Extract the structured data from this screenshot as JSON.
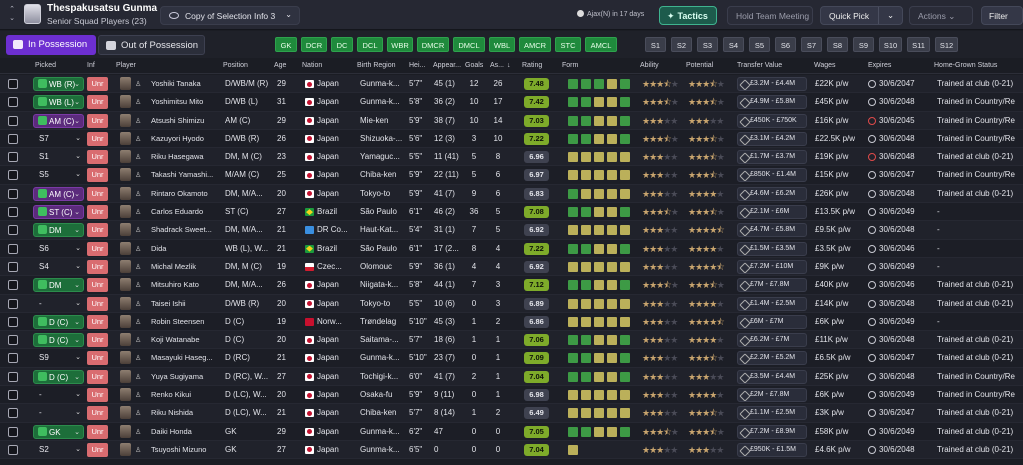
{
  "header": {
    "club_name": "Thespakusatsu Gunma",
    "squad_label": "Senior Squad Players (23)",
    "view_select": "Copy of Selection Info 3",
    "next_match": "Ajax(N) in 17 days",
    "tactics_label": "Tactics",
    "hold_meeting_label": "Hold Team Meeting",
    "quick_pick_label": "Quick Pick",
    "actions_label": "Actions",
    "filter_label": "Filter"
  },
  "phase_tabs": {
    "in_possession": "In Possession",
    "out_of_possession": "Out of Possession"
  },
  "position_chips": [
    "GK",
    "DCR",
    "DC",
    "DCL",
    "WBR",
    "DMCR",
    "DMCL",
    "WBL",
    "AMCR",
    "STC",
    "AMCL"
  ],
  "sub_chips": [
    "S1",
    "S2",
    "S3",
    "S4",
    "S5",
    "S6",
    "S7",
    "S8",
    "S9",
    "S10",
    "S11",
    "S12"
  ],
  "columns": {
    "picked": "Picked",
    "inf": "Inf",
    "player": "Player",
    "position": "Position",
    "age": "Age",
    "nation": "Nation",
    "birth_region": "Birth Region",
    "height": "Hei...",
    "appearances": "Appear...",
    "goals": "Goals",
    "assists": "As...",
    "rating": "Rating",
    "form": "Form",
    "ability": "Ability",
    "potential": "Potential",
    "transfer_value": "Transfer Value",
    "wages": "Wages",
    "expires": "Expires",
    "home_grown": "Home-Grown Status"
  },
  "players": [
    {
      "picked": "WB (R)",
      "pick_style": "green",
      "inf": "Unr",
      "name": "Yoshiki Tanaka",
      "position": "D/WB/M (R)",
      "age": "29",
      "nation": "Japan",
      "flag": "jp",
      "birth_region": "Gunma-k...",
      "height": "5'7\"",
      "apps": "45 (1)",
      "goals": "12",
      "assists": "26",
      "rating": "7.48",
      "form": "gggyg",
      "ability": "3.5",
      "potential": "3.5",
      "value": "£3.2M - £4.4M",
      "wages": "£22K p/w",
      "expires": "30/6/2047",
      "expires_red": false,
      "home_grown": "Trained at club (0-21)"
    },
    {
      "picked": "WB (L)",
      "pick_style": "green",
      "inf": "Unr",
      "name": "Yoshimitsu Mito",
      "position": "D/WB (L)",
      "age": "31",
      "nation": "Japan",
      "flag": "jp",
      "birth_region": "Gunma-k...",
      "height": "5'8\"",
      "apps": "36 (2)",
      "goals": "10",
      "assists": "17",
      "rating": "7.42",
      "form": "ggyyg",
      "ability": "3.5",
      "potential": "3.5",
      "value": "£4.9M - £5.8M",
      "wages": "£45K p/w",
      "expires": "30/6/2048",
      "expires_red": false,
      "home_grown": "Trained in Country/Re"
    },
    {
      "picked": "AM (C)",
      "pick_style": "purple",
      "inf": "Unr",
      "name": "Atsushi Shimizu",
      "position": "AM (C)",
      "age": "29",
      "nation": "Japan",
      "flag": "jp",
      "birth_region": "Mie-ken",
      "height": "5'9\"",
      "apps": "38 (7)",
      "goals": "10",
      "assists": "14",
      "rating": "7.03",
      "form": "ggyyg",
      "ability": "3",
      "potential": "3",
      "value": "£450K - £750K",
      "wages": "£16K p/w",
      "expires": "30/6/2045",
      "expires_red": true,
      "home_grown": "Trained in Country/Re"
    },
    {
      "picked": "S7",
      "pick_style": "plain",
      "inf": "Unr",
      "name": "Kazuyori Hyodo",
      "position": "D/WB (R)",
      "age": "26",
      "nation": "Japan",
      "flag": "jp",
      "birth_region": "Shizuoka-...",
      "height": "5'6\"",
      "apps": "12 (3)",
      "goals": "3",
      "assists": "10",
      "rating": "7.22",
      "form": "ggyyg",
      "ability": "3.5",
      "potential": "3.5",
      "value": "£3.1M - £4.2M",
      "wages": "£22.5K p/w",
      "expires": "30/6/2048",
      "expires_red": false,
      "home_grown": "Trained in Country/Re"
    },
    {
      "picked": "S1",
      "pick_style": "plain",
      "inf": "Unr",
      "name": "Riku Hasegawa",
      "position": "DM, M (C)",
      "age": "23",
      "nation": "Japan",
      "flag": "jp",
      "birth_region": "Yamaguc...",
      "height": "5'5\"",
      "apps": "11 (41)",
      "goals": "5",
      "assists": "8",
      "rating": "6.96",
      "form": "yyyyy",
      "ability": "3",
      "potential": "3.5",
      "value": "£1.7M - £3.7M",
      "wages": "£19K p/w",
      "expires": "30/6/2048",
      "expires_red": true,
      "home_grown": "Trained at club (0-21)"
    },
    {
      "picked": "S5",
      "pick_style": "plain",
      "inf": "Unr",
      "name": "Takashi Yamashi...",
      "position": "M/AM (C)",
      "age": "25",
      "nation": "Japan",
      "flag": "jp",
      "birth_region": "Chiba-ken",
      "height": "5'9\"",
      "apps": "22 (11)",
      "goals": "5",
      "assists": "6",
      "rating": "6.97",
      "form": "yyyyy",
      "ability": "3",
      "potential": "3.5",
      "value": "£850K - £1.4M",
      "wages": "£15K p/w",
      "expires": "30/6/2047",
      "expires_red": false,
      "home_grown": "Trained in Country/Re"
    },
    {
      "picked": "AM (C)",
      "pick_style": "purple",
      "inf": "Unr",
      "name": "Rintaro Okamoto",
      "position": "DM, M/A...",
      "age": "20",
      "nation": "Japan",
      "flag": "jp",
      "birth_region": "Tokyo-to",
      "height": "5'9\"",
      "apps": "41 (7)",
      "goals": "9",
      "assists": "6",
      "rating": "6.83",
      "form": "gyyyy",
      "ability": "3",
      "potential": "4",
      "value": "£4.6M - £6.2M",
      "wages": "£26K p/w",
      "expires": "30/6/2048",
      "expires_red": false,
      "home_grown": "Trained at club (0-21)"
    },
    {
      "picked": "ST (C)",
      "pick_style": "purple",
      "inf": "Unr",
      "name": "Carlos Eduardo",
      "position": "ST (C)",
      "age": "27",
      "nation": "Brazil",
      "flag": "br",
      "birth_region": "São Paulo",
      "height": "6'1\"",
      "apps": "46 (2)",
      "goals": "36",
      "assists": "5",
      "rating": "7.08",
      "form": "ggyyg",
      "ability": "3.5",
      "potential": "3.5",
      "value": "£2.1M - £6M",
      "wages": "£13.5K p/w",
      "expires": "30/6/2049",
      "expires_red": false,
      "home_grown": "-"
    },
    {
      "picked": "DM",
      "pick_style": "green",
      "inf": "Unr",
      "name": "Shadrack Sweet...",
      "position": "DM, M/A...",
      "age": "21",
      "nation": "DR Co...",
      "flag": "cd",
      "birth_region": "Haut-Kat...",
      "height": "5'4\"",
      "apps": "31 (1)",
      "goals": "7",
      "assists": "5",
      "rating": "6.92",
      "form": "yyyyy",
      "ability": "3",
      "potential": "4.5",
      "value": "£4.7M - £5.8M",
      "wages": "£9.5K p/w",
      "expires": "30/6/2048",
      "expires_red": false,
      "home_grown": "-"
    },
    {
      "picked": "S6",
      "pick_style": "plain",
      "inf": "Unr",
      "name": "Dida",
      "position": "WB (L), W...",
      "age": "21",
      "nation": "Brazil",
      "flag": "br",
      "birth_region": "São Paulo",
      "height": "6'1\"",
      "apps": "17 (2...",
      "goals": "8",
      "assists": "4",
      "rating": "7.22",
      "form": "ggyyg",
      "ability": "3",
      "potential": "4",
      "value": "£1.5M - £3.5M",
      "wages": "£3.5K p/w",
      "expires": "30/6/2046",
      "expires_red": false,
      "home_grown": "-"
    },
    {
      "picked": "S4",
      "pick_style": "plain",
      "inf": "Unr",
      "name": "Michal Mezlik",
      "position": "DM, M (C)",
      "age": "19",
      "nation": "Czec...",
      "flag": "cz",
      "birth_region": "Olomouc",
      "height": "5'9\"",
      "apps": "36 (1)",
      "goals": "4",
      "assists": "4",
      "rating": "6.92",
      "form": "yyyyy",
      "ability": "3",
      "potential": "4.5",
      "value": "£7.2M - £10M",
      "wages": "£9K p/w",
      "expires": "30/6/2049",
      "expires_red": false,
      "home_grown": "-"
    },
    {
      "picked": "DM",
      "pick_style": "green",
      "inf": "Unr",
      "name": "Mitsuhiro Kato",
      "position": "DM, M/A...",
      "age": "26",
      "nation": "Japan",
      "flag": "jp",
      "birth_region": "Niigata-k...",
      "height": "5'8\"",
      "apps": "44 (1)",
      "goals": "7",
      "assists": "3",
      "rating": "7.12",
      "form": "ggyyg",
      "ability": "3.5",
      "potential": "3.5",
      "value": "£7M - £7.8M",
      "wages": "£40K p/w",
      "expires": "30/6/2046",
      "expires_red": false,
      "home_grown": "Trained at club (0-21)"
    },
    {
      "picked": "-",
      "pick_style": "plain",
      "inf": "Unr",
      "name": "Taisei Ishii",
      "position": "D/WB (R)",
      "age": "20",
      "nation": "Japan",
      "flag": "jp",
      "birth_region": "Tokyo-to",
      "height": "5'5\"",
      "apps": "10 (6)",
      "goals": "0",
      "assists": "3",
      "rating": "6.89",
      "form": "yyyyy",
      "ability": "3",
      "potential": "4",
      "value": "£1.4M - £2.5M",
      "wages": "£14K p/w",
      "expires": "30/6/2048",
      "expires_red": false,
      "home_grown": "Trained at club (0-21)"
    },
    {
      "picked": "D (C)",
      "pick_style": "green",
      "inf": "Unr",
      "name": "Robin Steensen",
      "position": "D (C)",
      "age": "19",
      "nation": "Norw...",
      "flag": "no",
      "birth_region": "Trøndelag",
      "height": "5'10\"",
      "apps": "45 (3)",
      "goals": "1",
      "assists": "2",
      "rating": "6.86",
      "form": "yyyyy",
      "ability": "3",
      "potential": "4.5",
      "value": "£6M - £7M",
      "wages": "£6K p/w",
      "expires": "30/6/2049",
      "expires_red": false,
      "home_grown": "-"
    },
    {
      "picked": "D (C)",
      "pick_style": "green",
      "inf": "Unr",
      "name": "Koji Watanabe",
      "position": "D (C)",
      "age": "20",
      "nation": "Japan",
      "flag": "jp",
      "birth_region": "Saitama-...",
      "height": "5'7\"",
      "apps": "18 (6)",
      "goals": "1",
      "assists": "1",
      "rating": "7.06",
      "form": "ggyyg",
      "ability": "3",
      "potential": "4",
      "value": "£6.2M - £7M",
      "wages": "£11K p/w",
      "expires": "30/6/2048",
      "expires_red": false,
      "home_grown": "Trained at club (0-21)"
    },
    {
      "picked": "S9",
      "pick_style": "plain",
      "inf": "Unr",
      "name": "Masayuki Haseg...",
      "position": "D (RC)",
      "age": "21",
      "nation": "Japan",
      "flag": "jp",
      "birth_region": "Gunma-k...",
      "height": "5'10\"",
      "apps": "23 (7)",
      "goals": "0",
      "assists": "1",
      "rating": "7.09",
      "form": "ggyyg",
      "ability": "3",
      "potential": "3.5",
      "value": "£2.2M - £5.2M",
      "wages": "£6.5K p/w",
      "expires": "30/6/2047",
      "expires_red": false,
      "home_grown": "Trained at club (0-21)"
    },
    {
      "picked": "D (C)",
      "pick_style": "green",
      "inf": "Unr",
      "name": "Yuya Sugiyama",
      "position": "D (RC), W...",
      "age": "27",
      "nation": "Japan",
      "flag": "jp",
      "birth_region": "Tochigi-k...",
      "height": "6'0\"",
      "apps": "41 (7)",
      "goals": "2",
      "assists": "1",
      "rating": "7.04",
      "form": "ggyyg",
      "ability": "3",
      "potential": "3",
      "value": "£3.5M - £4.4M",
      "wages": "£25K p/w",
      "expires": "30/6/2048",
      "expires_red": false,
      "home_grown": "Trained in Country/Re"
    },
    {
      "picked": "-",
      "pick_style": "plain",
      "inf": "Unr",
      "name": "Renko Kikui",
      "position": "D (LC), W...",
      "age": "20",
      "nation": "Japan",
      "flag": "jp",
      "birth_region": "Osaka-fu",
      "height": "5'9\"",
      "apps": "9 (11)",
      "goals": "0",
      "assists": "1",
      "rating": "6.98",
      "form": "yyyyy",
      "ability": "3",
      "potential": "4",
      "value": "£2M - £7.8M",
      "wages": "£6K p/w",
      "expires": "30/6/2049",
      "expires_red": false,
      "home_grown": "Trained in Country/Re"
    },
    {
      "picked": "-",
      "pick_style": "plain",
      "inf": "Unr",
      "name": "Riku Nishida",
      "position": "D (LC), W...",
      "age": "21",
      "nation": "Japan",
      "flag": "jp",
      "birth_region": "Chiba-ken",
      "height": "5'7\"",
      "apps": "8 (14)",
      "goals": "1",
      "assists": "2",
      "rating": "6.49",
      "form": "yyyyy",
      "ability": "3",
      "potential": "3.5",
      "value": "£1.1M - £2.5M",
      "wages": "£3K p/w",
      "expires": "30/6/2047",
      "expires_red": false,
      "home_grown": "Trained at club (0-21)"
    },
    {
      "picked": "GK",
      "pick_style": "green",
      "inf": "Unr",
      "name": "Daiki Honda",
      "position": "GK",
      "age": "29",
      "nation": "Japan",
      "flag": "jp",
      "birth_region": "Gunma-k...",
      "height": "6'2\"",
      "apps": "47",
      "goals": "0",
      "assists": "0",
      "rating": "7.05",
      "form": "ggyyg",
      "ability": "3.5",
      "potential": "3.5",
      "value": "£7.2M - £8.9M",
      "wages": "£58K p/w",
      "expires": "30/6/2049",
      "expires_red": false,
      "home_grown": "Trained at club (0-21)"
    },
    {
      "picked": "S2",
      "pick_style": "plain",
      "inf": "Unr",
      "name": "Tsuyoshi Mizuno",
      "position": "GK",
      "age": "27",
      "nation": "Japan",
      "flag": "jp",
      "birth_region": "Gunma-k...",
      "height": "6'5\"",
      "apps": "0",
      "goals": "0",
      "assists": "0",
      "rating": "7.04",
      "form": "y",
      "ability": "3",
      "potential": "3",
      "value": "£950K - £1.5M",
      "wages": "£4.6K p/w",
      "expires": "30/6/2048",
      "expires_red": false,
      "home_grown": "Trained at club (0-21)"
    }
  ]
}
